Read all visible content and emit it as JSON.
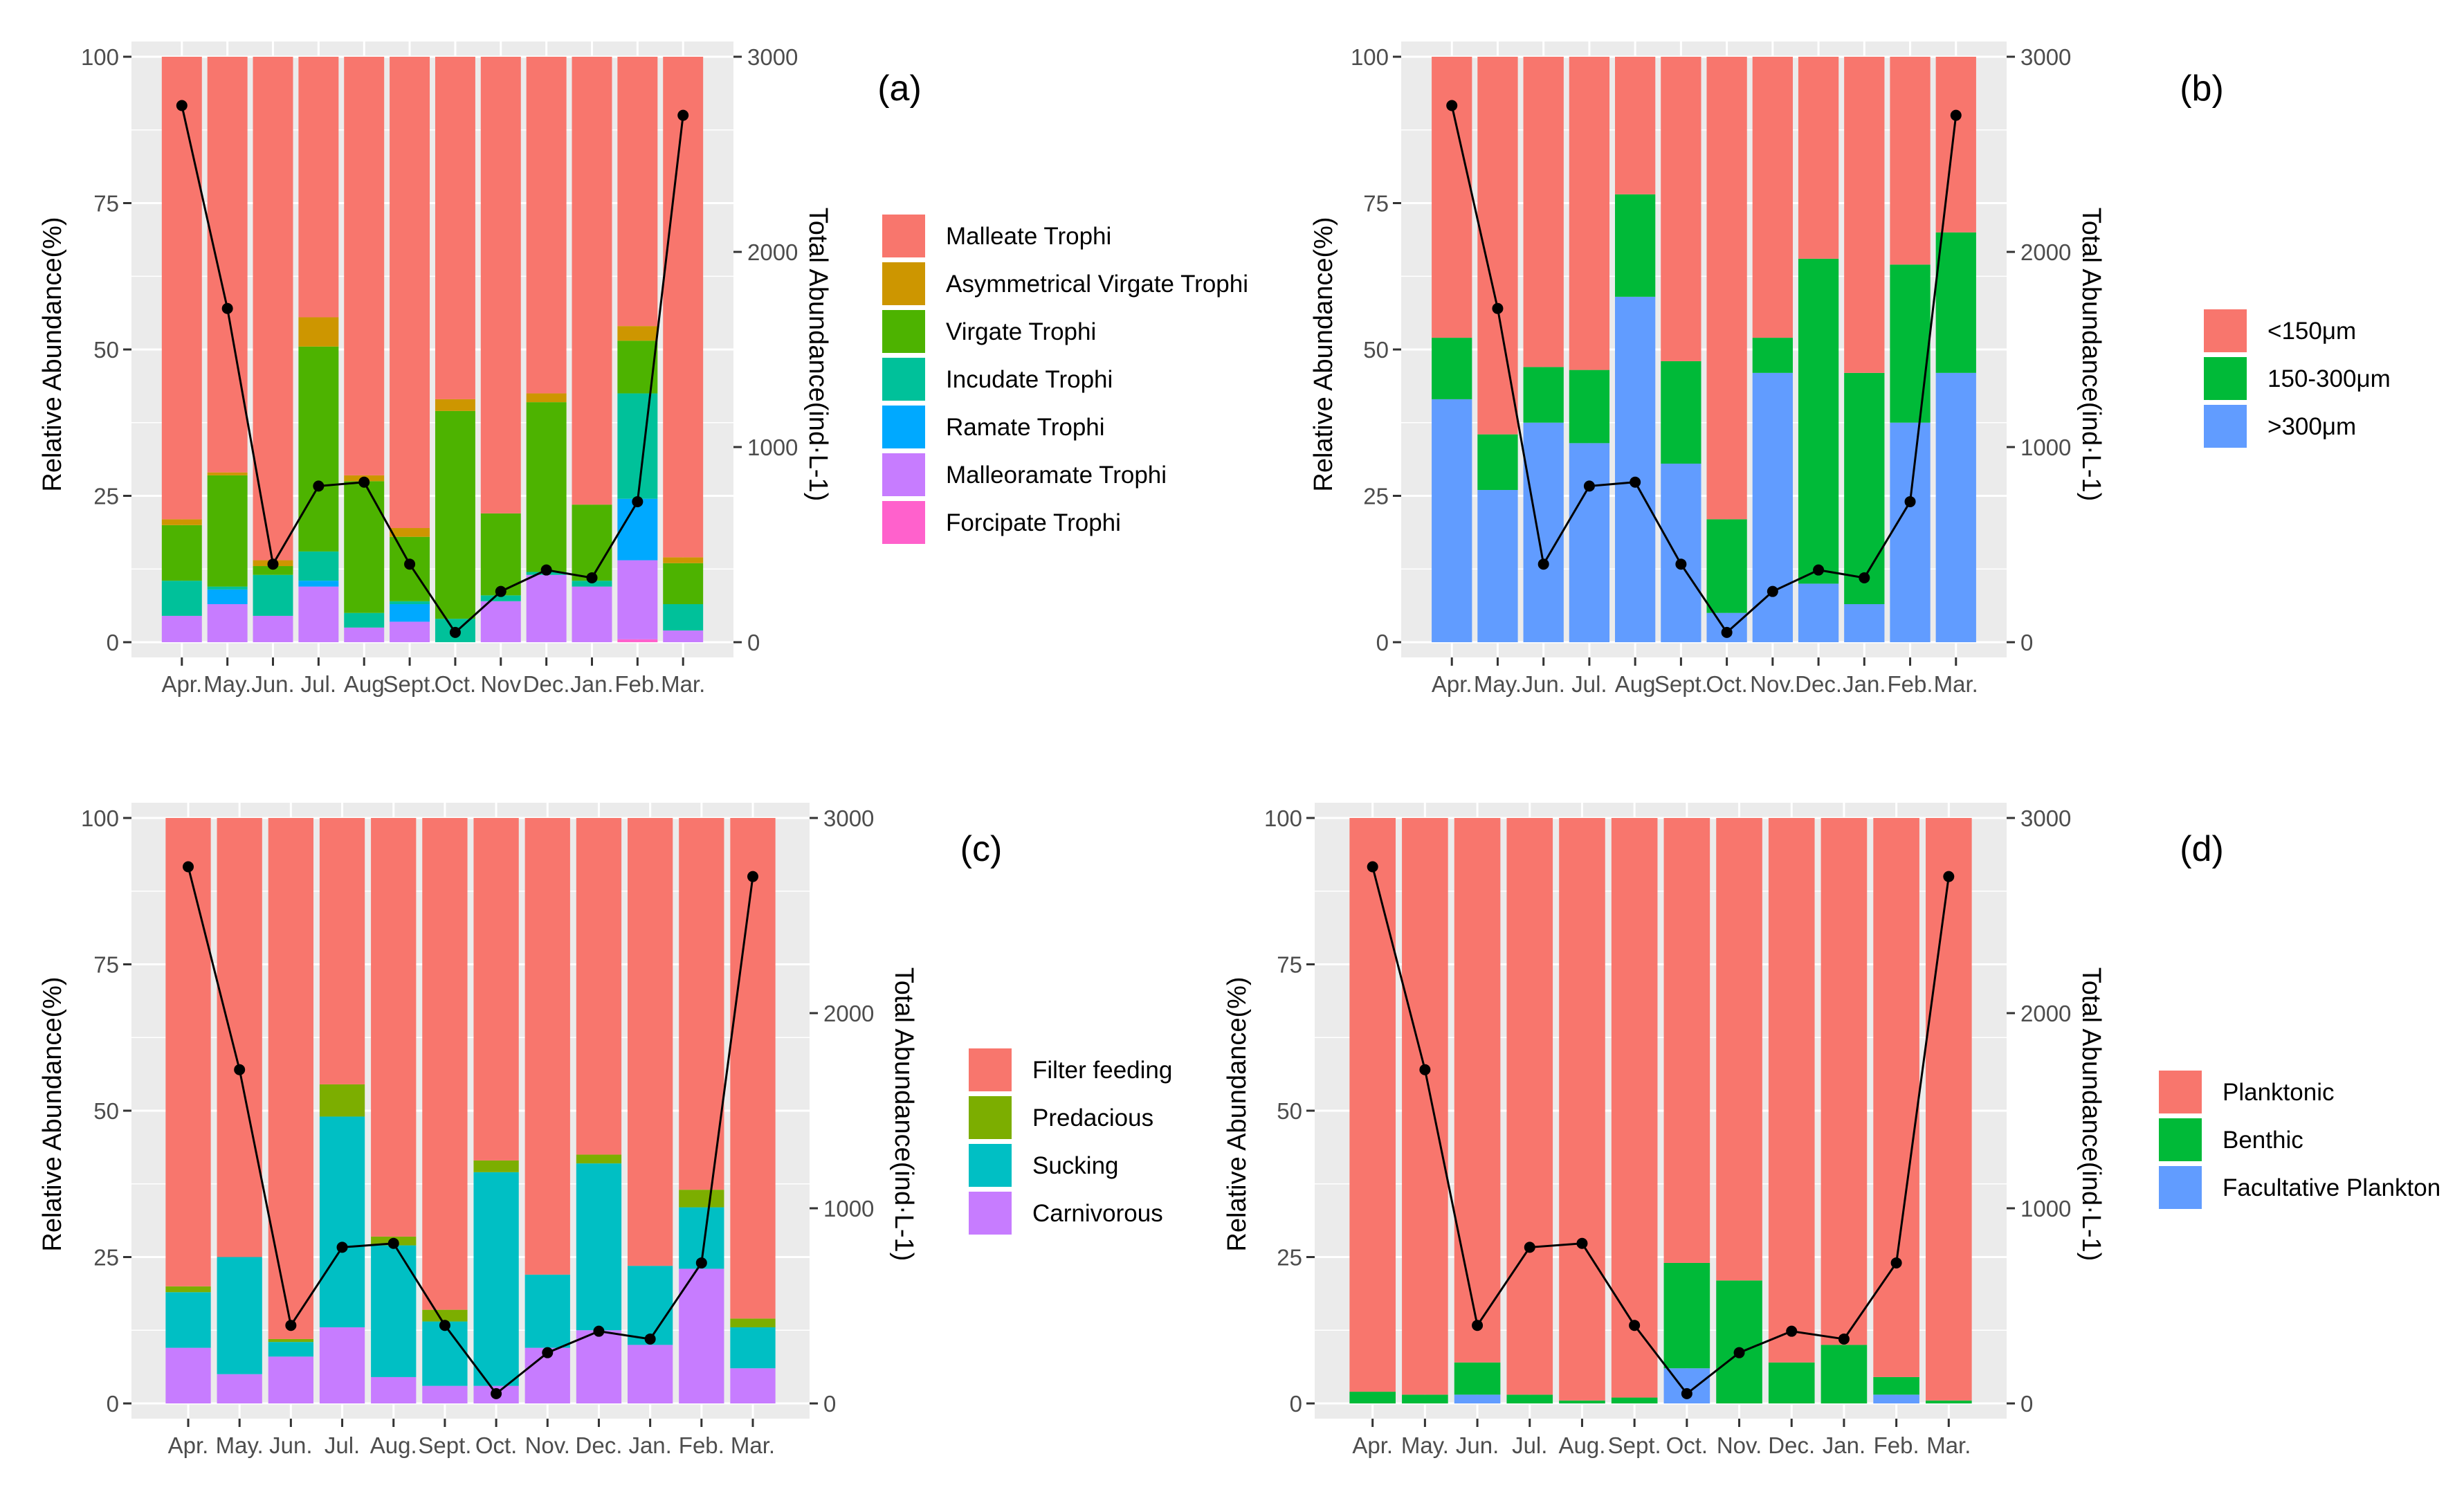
{
  "figure": {
    "y_left_label": "Relative Abundance(%)",
    "y_right_label": "Total Abundance(ind·L-1)"
  },
  "chart_data": [
    {
      "type": "bar",
      "panel": "(a)",
      "title": "",
      "xlabel": "",
      "ylabel": "Relative Abundance(%)",
      "ylabel_right": "Total Abundance(ind·L-1)",
      "categories": [
        "Apr.",
        "May.",
        "Jun.",
        "Jul.",
        "Aug.",
        "Sept.",
        "Oct.",
        "Nov.",
        "Dec.",
        "Jan.",
        "Feb.",
        "Mar."
      ],
      "tick_labels": [
        "Apr.",
        "May.",
        "Jun.",
        "Jul.",
        "Aug",
        "Sept.",
        "Oct.",
        "Nov",
        "Dec.",
        "Jan.",
        "Feb.",
        "Mar."
      ],
      "ylim": [
        0,
        100
      ],
      "yticks": [
        0,
        25,
        50,
        75,
        100
      ],
      "ylim_right": [
        0,
        3000
      ],
      "yticks_right": [
        0,
        1000,
        2000,
        3000
      ],
      "legend_position": "right",
      "series": [
        {
          "name": "Forcipate Trophi",
          "color": "#FF61CC",
          "values": [
            0,
            0,
            0,
            0,
            0,
            0,
            0,
            0,
            0,
            0,
            0.5,
            0
          ]
        },
        {
          "name": "Malleoramate Trophi",
          "color": "#C77CFF",
          "values": [
            4.5,
            6.5,
            4.5,
            9.5,
            2.5,
            3.5,
            0,
            7,
            11.5,
            9.5,
            13.5,
            2
          ]
        },
        {
          "name": "Ramate Trophi",
          "color": "#00A9FF",
          "values": [
            0,
            2.5,
            0,
            1,
            0,
            3,
            0,
            0,
            0,
            0,
            10.5,
            0
          ]
        },
        {
          "name": "Incudate Trophi",
          "color": "#00C19A",
          "values": [
            6,
            0.5,
            7,
            5,
            2.5,
            0.5,
            4,
            1,
            0.5,
            1,
            18,
            4.5
          ]
        },
        {
          "name": "Virgate Trophi",
          "color": "#4DB300",
          "values": [
            9.5,
            19,
            1.5,
            35,
            22.5,
            11,
            35.5,
            14,
            29,
            13,
            9,
            7
          ]
        },
        {
          "name": "Asymmetrical Virgate Trophi",
          "color": "#CD9600",
          "values": [
            1,
            0.5,
            1,
            5,
            1,
            1.5,
            2,
            0,
            1.5,
            0,
            2.5,
            1
          ]
        },
        {
          "name": "Malleate Trophi",
          "color": "#F8766D",
          "values": [
            79,
            71,
            86,
            44.5,
            71.5,
            80.5,
            58.5,
            78,
            57.5,
            76.5,
            46,
            85.5
          ]
        }
      ],
      "line": {
        "name": "Total Abundance",
        "values": [
          2750,
          1710,
          400,
          800,
          820,
          400,
          50,
          260,
          370,
          330,
          720,
          2700
        ]
      }
    },
    {
      "type": "bar",
      "panel": "(b)",
      "title": "",
      "xlabel": "",
      "ylabel": "Relative Abundance(%)",
      "ylabel_right": "Total Abundance(ind·L-1)",
      "categories": [
        "Apr.",
        "May.",
        "Jun.",
        "Jul.",
        "Aug.",
        "Sept.",
        "Oct.",
        "Nov.",
        "Dec.",
        "Jan.",
        "Feb.",
        "Mar."
      ],
      "tick_labels": [
        "Apr.",
        "May.",
        "Jun.",
        "Jul.",
        "Aug",
        "Sept.",
        "Oct.",
        "Nov.",
        "Dec.",
        "Jan.",
        "Feb.",
        "Mar."
      ],
      "ylim": [
        0,
        100
      ],
      "yticks": [
        0,
        25,
        50,
        75,
        100
      ],
      "ylim_right": [
        0,
        3000
      ],
      "yticks_right": [
        0,
        1000,
        2000,
        3000
      ],
      "legend_position": "right",
      "series": [
        {
          "name": ">300μm",
          "color": "#619CFF",
          "values": [
            41.5,
            26,
            37.5,
            34,
            59,
            30.5,
            5,
            46,
            10,
            6.5,
            37.5,
            46
          ]
        },
        {
          "name": "150-300μm",
          "color": "#00BA38",
          "values": [
            10.5,
            9.5,
            9.5,
            12.5,
            17.5,
            17.5,
            16,
            6,
            55.5,
            39.5,
            27,
            24
          ]
        },
        {
          "name": "<150μm",
          "color": "#F8766D",
          "values": [
            48,
            64.5,
            53,
            53.5,
            23.5,
            52,
            79,
            48,
            34.5,
            54,
            35.5,
            30
          ]
        }
      ],
      "line": {
        "name": "Total Abundance",
        "values": [
          2750,
          1710,
          400,
          800,
          820,
          400,
          50,
          260,
          370,
          330,
          720,
          2700
        ]
      }
    },
    {
      "type": "bar",
      "panel": "(c)",
      "title": "",
      "xlabel": "",
      "ylabel": "Relative Abundance(%)",
      "ylabel_right": "Total Abundance(ind·L-1)",
      "categories": [
        "Apr.",
        "May.",
        "Jun.",
        "Jul.",
        "Aug.",
        "Sept.",
        "Oct.",
        "Nov.",
        "Dec.",
        "Jan.",
        "Feb.",
        "Mar."
      ],
      "tick_labels": [
        "Apr.",
        "May.",
        "Jun.",
        "Jul.",
        "Aug.",
        "Sept.",
        "Oct.",
        "Nov.",
        "Dec.",
        "Jan.",
        "Feb.",
        "Mar."
      ],
      "ylim": [
        0,
        100
      ],
      "yticks": [
        0,
        25,
        50,
        75,
        100
      ],
      "ylim_right": [
        0,
        3000
      ],
      "yticks_right": [
        0,
        1000,
        2000,
        3000
      ],
      "legend_position": "right",
      "series": [
        {
          "name": "Carnivorous",
          "color": "#C77CFF",
          "values": [
            9.5,
            5,
            8,
            13,
            4.5,
            3,
            3,
            9.5,
            12.5,
            10,
            23,
            6
          ]
        },
        {
          "name": "Sucking",
          "color": "#00BFC4",
          "values": [
            9.5,
            20,
            2.5,
            36,
            22.5,
            11,
            36.5,
            12.5,
            28.5,
            13.5,
            10.5,
            7
          ]
        },
        {
          "name": "Predacious",
          "color": "#7CAE00",
          "values": [
            1,
            0,
            0.5,
            5.5,
            1.5,
            2,
            2,
            0,
            1.5,
            0,
            3,
            1.5
          ]
        },
        {
          "name": "Filter feeding",
          "color": "#F8766D",
          "values": [
            80,
            75,
            89,
            45.5,
            71.5,
            84,
            58.5,
            78,
            57.5,
            76.5,
            63.5,
            85.5
          ]
        }
      ],
      "line": {
        "name": "Total Abundance",
        "values": [
          2750,
          1710,
          400,
          800,
          820,
          400,
          50,
          260,
          370,
          330,
          720,
          2700
        ]
      }
    },
    {
      "type": "bar",
      "panel": "(d)",
      "title": "",
      "xlabel": "",
      "ylabel": "Relative Abundance(%)",
      "ylabel_right": "Total Abundance(ind·L-1)",
      "categories": [
        "Apr.",
        "May.",
        "Jun.",
        "Jul.",
        "Aug.",
        "Sept.",
        "Oct.",
        "Nov.",
        "Dec.",
        "Jan.",
        "Feb.",
        "Mar."
      ],
      "tick_labels": [
        "Apr.",
        "May.",
        "Jun.",
        "Jul.",
        "Aug.",
        "Sept.",
        "Oct.",
        "Nov.",
        "Dec.",
        "Jan.",
        "Feb.",
        "Mar."
      ],
      "ylim": [
        0,
        100
      ],
      "yticks": [
        0,
        25,
        50,
        75,
        100
      ],
      "ylim_right": [
        0,
        3000
      ],
      "yticks_right": [
        0,
        1000,
        2000,
        3000
      ],
      "legend_position": "right",
      "series": [
        {
          "name": "Facultative Plankton",
          "color": "#619CFF",
          "values": [
            0,
            0,
            1.5,
            0,
            0,
            0,
            6,
            0,
            0,
            0,
            1.5,
            0
          ]
        },
        {
          "name": "Benthic",
          "color": "#00BA38",
          "values": [
            2,
            1.5,
            5.5,
            1.5,
            0.5,
            1,
            18,
            21,
            7,
            10,
            3,
            0.5
          ]
        },
        {
          "name": "Planktonic",
          "color": "#F8766D",
          "values": [
            98,
            98.5,
            93,
            98.5,
            99.5,
            99,
            76,
            79,
            93,
            90,
            95.5,
            99.5
          ]
        }
      ],
      "line": {
        "name": "Total Abundance",
        "values": [
          2750,
          1710,
          400,
          800,
          820,
          400,
          50,
          260,
          370,
          330,
          720,
          2700
        ]
      }
    }
  ]
}
